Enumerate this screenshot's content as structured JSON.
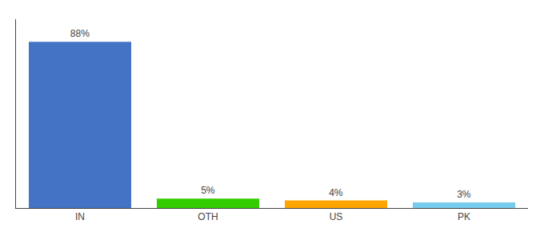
{
  "chart_data": {
    "type": "bar",
    "categories": [
      "IN",
      "OTH",
      "US",
      "PK"
    ],
    "values": [
      88,
      5,
      4,
      3
    ],
    "value_labels": [
      "88%",
      "5%",
      "4%",
      "3%"
    ],
    "colors": [
      "#4472c4",
      "#33cc00",
      "#ffa500",
      "#77ccee"
    ],
    "ylim": [
      0,
      100
    ],
    "data_labels": true,
    "tick_labels": "x",
    "grid": false
  }
}
